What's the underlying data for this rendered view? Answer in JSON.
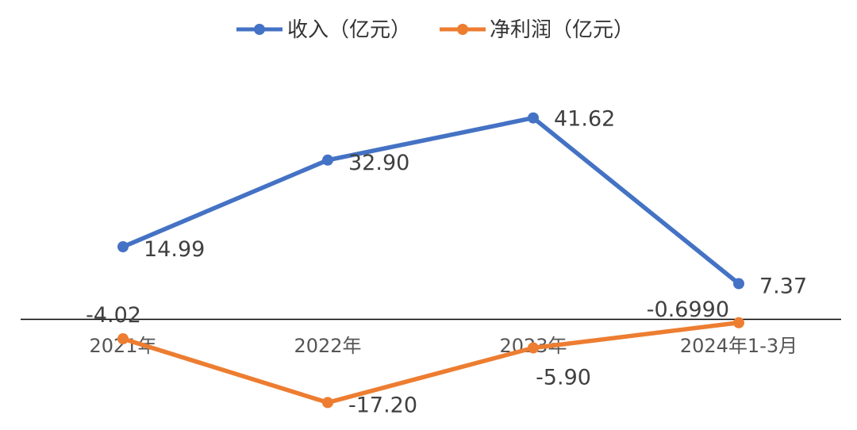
{
  "chart_data": {
    "type": "line",
    "categories": [
      "2021年",
      "2022年",
      "2023年",
      "2024年1-3月"
    ],
    "series": [
      {
        "name": "收入（亿元）",
        "values": [
          14.99,
          32.9,
          41.62,
          7.37
        ],
        "labels": [
          "14.99",
          "32.90",
          "41.62",
          "7.37"
        ],
        "color": "#4472C4"
      },
      {
        "name": "净利润（亿元）",
        "values": [
          -4.02,
          -17.2,
          -5.9,
          -0.699
        ],
        "labels": [
          "-4.02",
          "-17.20",
          "-5.90",
          "-0.6990"
        ],
        "color": "#ED7D31"
      }
    ],
    "legend_position": "top-center",
    "grid": false
  }
}
